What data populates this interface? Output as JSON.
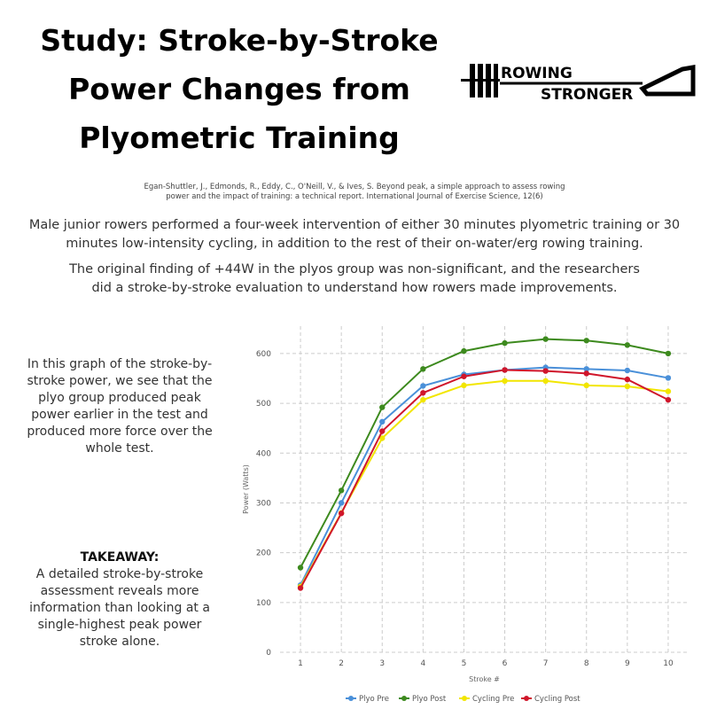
{
  "header": {
    "title": [
      "Study: Stroke-by-Stroke",
      "Power Changes from",
      "Plyometric Training"
    ]
  },
  "logo": {
    "line1": "ROWING",
    "line2": "STRONGER"
  },
  "citation": [
    "Egan-Shuttler, J., Edmonds, R., Eddy, C., O'Neill, V., & Ives, S. Beyond peak, a simple approach to assess rowing",
    "power and the impact of training: a technical report. International Journal of Exercise Science, 12(6)"
  ],
  "paragraphs": [
    "Male junior rowers performed a four-week intervention of either 30 minutes plyometric training or 30 minutes low-intensity cycling, in addition to the rest of their on-water/erg rowing training.",
    "The original finding of +44W in the plyos group was non-significant, and the researchers did a stroke-by-stroke evaluation to understand how rowers made improvements."
  ],
  "side": {
    "text": "In this graph of the stroke-by-stroke power, we see that the plyo group produced peak power earlier in the test and produced more force over the whole test.",
    "takeaway_heading": "TAKEAWAY:",
    "takeaway_text": "A detailed stroke-by-stroke assessment reveals more information than looking at a single-highest peak power stroke alone."
  },
  "chart_data": {
    "type": "line",
    "x_label": "Stroke #",
    "y_label": "Power (Watts)",
    "x": [
      1,
      2,
      3,
      4,
      5,
      6,
      7,
      8,
      9,
      10
    ],
    "xlim": [
      0.5,
      10.5
    ],
    "xticks": [
      1,
      2,
      3,
      4,
      5,
      6,
      7,
      8,
      9,
      10
    ],
    "ylim": [
      0,
      655
    ],
    "yticks": [
      0,
      100,
      200,
      300,
      400,
      500,
      600
    ],
    "grid": true,
    "series": [
      {
        "name": "Plyo Pre",
        "color": "#4a90d9",
        "values": [
          135,
          300,
          463,
          535,
          558,
          567,
          572,
          569,
          566,
          551
        ]
      },
      {
        "name": "Plyo Post",
        "color": "#3d8a1e",
        "values": [
          170,
          325,
          492,
          569,
          605,
          621,
          629,
          626,
          617,
          600
        ]
      },
      {
        "name": "Cycling Pre",
        "color": "#f2e600",
        "values": [
          132,
          280,
          430,
          507,
          536,
          545,
          545,
          536,
          534,
          524
        ]
      },
      {
        "name": "Cycling Post",
        "color": "#d0162b",
        "values": [
          129,
          279,
          444,
          521,
          554,
          567,
          565,
          560,
          548,
          507
        ]
      }
    ]
  }
}
